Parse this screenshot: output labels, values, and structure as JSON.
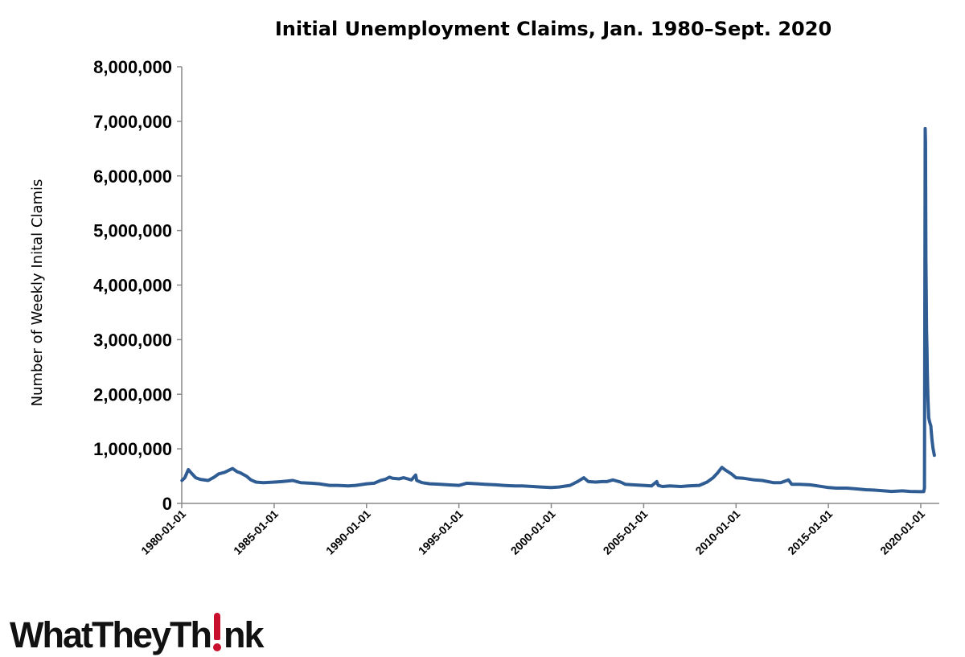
{
  "logo": {
    "text_before": "WhatTheyTh",
    "text_after": "nk",
    "accent_color": "#c8102e",
    "full_text": "WhatTheyThink"
  },
  "chart_data": {
    "type": "line",
    "title": "Initial Unemployment Claims, Jan. 1980–Sept. 2020",
    "xlabel": "",
    "ylabel": "Number of Weekly Inital Clamis",
    "xlim": [
      "1980-01-01",
      "2020-09-26"
    ],
    "ylim": [
      0,
      8000000
    ],
    "x_ticks": [
      "1980-01-01",
      "1985-01-01",
      "1990-01-01",
      "1995-01-01",
      "2000-01-01",
      "2005-01-01",
      "2010-01-01",
      "2015-01-01",
      "2020-01-01"
    ],
    "y_ticks": [
      0,
      1000000,
      2000000,
      3000000,
      4000000,
      5000000,
      6000000,
      7000000,
      8000000
    ],
    "y_tick_labels": [
      "0",
      "1,000,000",
      "2,000,000",
      "3,000,000",
      "4,000,000",
      "5,000,000",
      "6,000,000",
      "7,000,000",
      "8,000,000"
    ],
    "grid": false,
    "legend": "none",
    "line_color": "#2e5c93",
    "series": [
      {
        "x": [
          "1980-01-05",
          "1980-03-01",
          "1980-05-10",
          "1980-07-05",
          "1980-10-04",
          "1981-01-03",
          "1981-06-06",
          "1981-10-03",
          "1982-01-02",
          "1982-05-01",
          "1982-10-02",
          "1983-01-01",
          "1983-03-05",
          "1983-07-02",
          "1983-10-01",
          "1984-01-07",
          "1984-06-02",
          "1985-01-05",
          "1985-06-01",
          "1986-01-04",
          "1986-06-07",
          "1987-01-03",
          "1987-06-06",
          "1988-01-02",
          "1988-06-04",
          "1989-01-07",
          "1989-06-03",
          "1990-01-06",
          "1990-06-02",
          "1990-10-06",
          "1991-01-05",
          "1991-03-30",
          "1991-06-01",
          "1991-10-05",
          "1992-01-04",
          "1992-06-06",
          "1992-08-29",
          "1992-09-19",
          "1993-01-02",
          "1993-06-05",
          "1994-01-01",
          "1994-06-04",
          "1995-01-07",
          "1995-06-03",
          "1996-01-06",
          "1996-06-01",
          "1997-01-04",
          "1997-06-07",
          "1998-01-03",
          "1998-06-06",
          "1999-01-02",
          "1999-06-05",
          "2000-01-01",
          "2000-06-03",
          "2001-01-06",
          "2001-06-02",
          "2001-10-06",
          "2002-01-05",
          "2002-06-01",
          "2002-10-05",
          "2003-01-04",
          "2003-05-03",
          "2003-10-04",
          "2004-01-03",
          "2004-06-05",
          "2005-01-01",
          "2005-06-04",
          "2005-09-17",
          "2005-10-15",
          "2006-01-07",
          "2006-06-03",
          "2007-01-06",
          "2007-06-02",
          "2008-01-05",
          "2008-06-07",
          "2008-10-04",
          "2009-01-03",
          "2009-03-28",
          "2009-06-06",
          "2009-10-03",
          "2010-01-02",
          "2010-06-05",
          "2011-01-01",
          "2011-06-04",
          "2012-01-07",
          "2012-06-02",
          "2012-11-03",
          "2013-01-05",
          "2013-06-01",
          "2014-01-04",
          "2014-06-07",
          "2015-01-03",
          "2015-06-06",
          "2016-01-02",
          "2016-06-04",
          "2017-01-07",
          "2017-06-03",
          "2018-01-06",
          "2018-06-02",
          "2019-01-05",
          "2019-06-01",
          "2020-01-04",
          "2020-02-29",
          "2020-03-14",
          "2020-03-21",
          "2020-03-28",
          "2020-04-04",
          "2020-04-11",
          "2020-04-18",
          "2020-04-25",
          "2020-05-02",
          "2020-05-09",
          "2020-05-16",
          "2020-05-23",
          "2020-06-06",
          "2020-06-27",
          "2020-07-18",
          "2020-08-08",
          "2020-08-29",
          "2020-09-26"
        ],
        "values": [
          420000,
          470000,
          620000,
          560000,
          470000,
          440000,
          420000,
          480000,
          540000,
          570000,
          640000,
          580000,
          560000,
          500000,
          430000,
          390000,
          380000,
          390000,
          400000,
          420000,
          380000,
          370000,
          360000,
          330000,
          330000,
          320000,
          330000,
          360000,
          370000,
          420000,
          440000,
          480000,
          460000,
          450000,
          470000,
          430000,
          520000,
          420000,
          380000,
          360000,
          350000,
          340000,
          330000,
          370000,
          360000,
          350000,
          340000,
          330000,
          320000,
          320000,
          310000,
          300000,
          290000,
          300000,
          330000,
          400000,
          470000,
          400000,
          390000,
          400000,
          400000,
          430000,
          390000,
          350000,
          340000,
          330000,
          320000,
          400000,
          330000,
          310000,
          320000,
          310000,
          320000,
          330000,
          390000,
          470000,
          560000,
          660000,
          610000,
          540000,
          470000,
          460000,
          430000,
          420000,
          380000,
          380000,
          430000,
          350000,
          350000,
          340000,
          320000,
          290000,
          280000,
          280000,
          270000,
          250000,
          245000,
          230000,
          220000,
          230000,
          220000,
          215000,
          217000,
          282000,
          3307000,
          6867000,
          6615000,
          4442000,
          3867000,
          3176000,
          2849000,
          2446000,
          2123000,
          1897000,
          1566000,
          1482000,
          1422000,
          1186000,
          1011000,
          881000
        ]
      }
    ]
  }
}
